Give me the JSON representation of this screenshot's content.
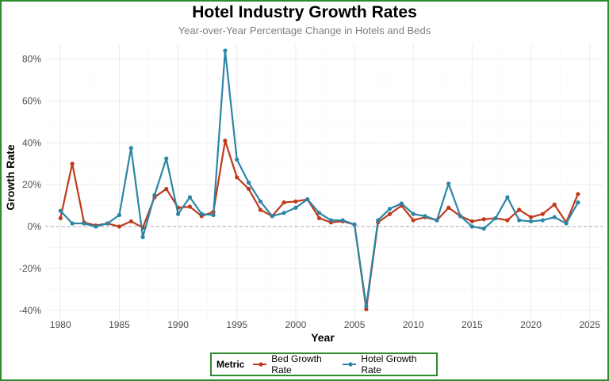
{
  "chart_data": {
    "type": "line",
    "title": "Hotel Industry Growth Rates",
    "subtitle": "Year-over-Year Percentage Change in Hotels and Beds",
    "xlabel": "Year",
    "ylabel": "Growth Rate",
    "x": [
      1980,
      1981,
      1982,
      1983,
      1984,
      1985,
      1986,
      1987,
      1988,
      1989,
      1990,
      1991,
      1992,
      1993,
      1994,
      1995,
      1996,
      1997,
      1998,
      1999,
      2000,
      2001,
      2002,
      2003,
      2004,
      2005,
      2006,
      2007,
      2008,
      2009,
      2010,
      2011,
      2012,
      2013,
      2014,
      2015,
      2016,
      2017,
      2018,
      2019,
      2020,
      2021,
      2022,
      2023,
      2024
    ],
    "xticks": [
      1980,
      1985,
      1990,
      1995,
      2000,
      2005,
      2010,
      2015,
      2020,
      2025
    ],
    "xlim": [
      1978.7,
      2026.1
    ],
    "yticks": [
      -0.4,
      -0.2,
      0,
      0.2,
      0.4,
      0.6,
      0.8
    ],
    "ytick_labels": [
      "-40%",
      "-20%",
      "0%",
      "20%",
      "40%",
      "60%",
      "80%"
    ],
    "ylim": [
      -0.45,
      0.87
    ],
    "grid": true,
    "zero_line": "dashed",
    "legend_title": "Metric",
    "legend_position": "bottom",
    "series": [
      {
        "name": "Bed Growth Rate",
        "color": "#c0391b",
        "values": [
          0.04,
          0.3,
          0.02,
          0.005,
          0.015,
          0.0,
          0.025,
          -0.005,
          0.14,
          0.18,
          0.09,
          0.095,
          0.05,
          0.07,
          0.41,
          0.235,
          0.18,
          0.08,
          0.05,
          0.115,
          0.12,
          0.13,
          0.04,
          0.02,
          0.025,
          0.01,
          -0.395,
          0.02,
          0.06,
          0.1,
          0.03,
          0.045,
          0.03,
          0.09,
          0.05,
          0.025,
          0.035,
          0.04,
          0.03,
          0.08,
          0.045,
          0.06,
          0.105,
          0.02,
          0.155
        ]
      },
      {
        "name": "Hotel Growth Rate",
        "color": "#2b86a6",
        "values": [
          0.075,
          0.015,
          0.015,
          0.0,
          0.015,
          0.055,
          0.375,
          -0.05,
          0.15,
          0.325,
          0.06,
          0.14,
          0.06,
          0.055,
          0.84,
          0.32,
          0.21,
          0.12,
          0.05,
          0.065,
          0.09,
          0.13,
          0.065,
          0.03,
          0.03,
          0.01,
          -0.38,
          0.03,
          0.085,
          0.11,
          0.06,
          0.05,
          0.03,
          0.205,
          0.05,
          0.0,
          -0.01,
          0.04,
          0.14,
          0.03,
          0.025,
          0.03,
          0.045,
          0.015,
          0.115
        ]
      }
    ]
  }
}
